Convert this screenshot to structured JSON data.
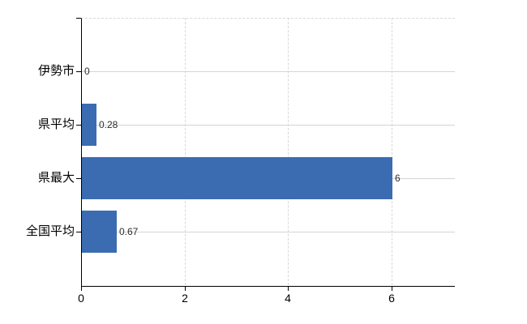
{
  "chart_data": {
    "type": "bar",
    "orientation": "horizontal",
    "title": "",
    "categories": [
      "伊勢市",
      "県平均",
      "県最大",
      "全国平均"
    ],
    "values": [
      0,
      0.28,
      6,
      0.67
    ],
    "value_labels": [
      "0",
      "0.28",
      "6",
      "0.67"
    ],
    "x_ticks": [
      0,
      2,
      4,
      6
    ],
    "x_tick_labels": [
      "0",
      "2",
      "4",
      "6"
    ],
    "xlim": [
      0,
      7.2
    ],
    "grid": true,
    "legend": false,
    "bar_color": "#3b6cb2"
  },
  "colors": {
    "bar": "#3b6cb2",
    "gridline_horizontal": "#d4d4d4",
    "gridline_vertical": "#d8d8d8",
    "axis": "#000000",
    "category_label": "#000000",
    "value_label": "#2e2e2e",
    "background": "#ffffff"
  }
}
